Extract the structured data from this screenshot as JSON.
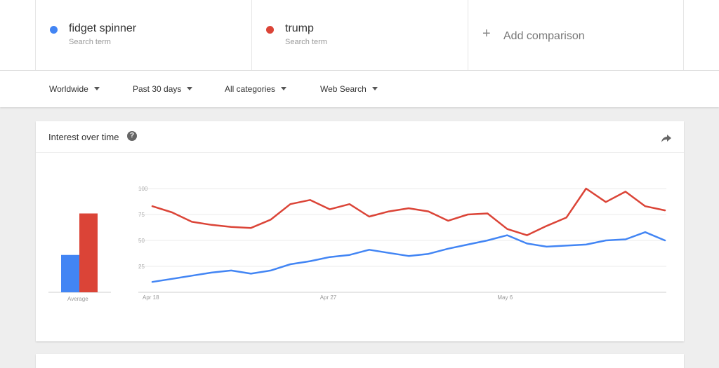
{
  "terms": [
    {
      "name": "fidget spinner",
      "sub": "Search term",
      "color": "#4285f4"
    },
    {
      "name": "trump",
      "sub": "Search term",
      "color": "#db4437"
    }
  ],
  "add_comparison": {
    "label": "Add comparison"
  },
  "filters": [
    {
      "label": "Worldwide"
    },
    {
      "label": "Past 30 days"
    },
    {
      "label": "All categories"
    },
    {
      "label": "Web Search"
    }
  ],
  "card": {
    "title": "Interest over time",
    "help_icon": "question-circle-icon",
    "share_icon": "share-icon"
  },
  "chart_data": {
    "type": "line",
    "ylim": [
      0,
      100
    ],
    "yticks": [
      "100",
      "75",
      "50",
      "25"
    ],
    "xticks": [
      "Apr 18",
      "Apr 27",
      "May 6"
    ],
    "average": {
      "label": "Average",
      "values": [
        36,
        76
      ]
    },
    "series": [
      {
        "name": "fidget spinner",
        "color": "#4285f4",
        "values": [
          10,
          13,
          16,
          19,
          21,
          18,
          21,
          27,
          30,
          34,
          36,
          41,
          38,
          35,
          37,
          42,
          46,
          50,
          55,
          47,
          44,
          45,
          46,
          50,
          51,
          58,
          50
        ]
      },
      {
        "name": "trump",
        "color": "#db4437",
        "values": [
          83,
          77,
          68,
          65,
          63,
          62,
          70,
          85,
          89,
          80,
          85,
          73,
          78,
          81,
          78,
          69,
          75,
          76,
          61,
          55,
          64,
          72,
          100,
          87,
          97,
          83,
          79
        ]
      }
    ]
  }
}
